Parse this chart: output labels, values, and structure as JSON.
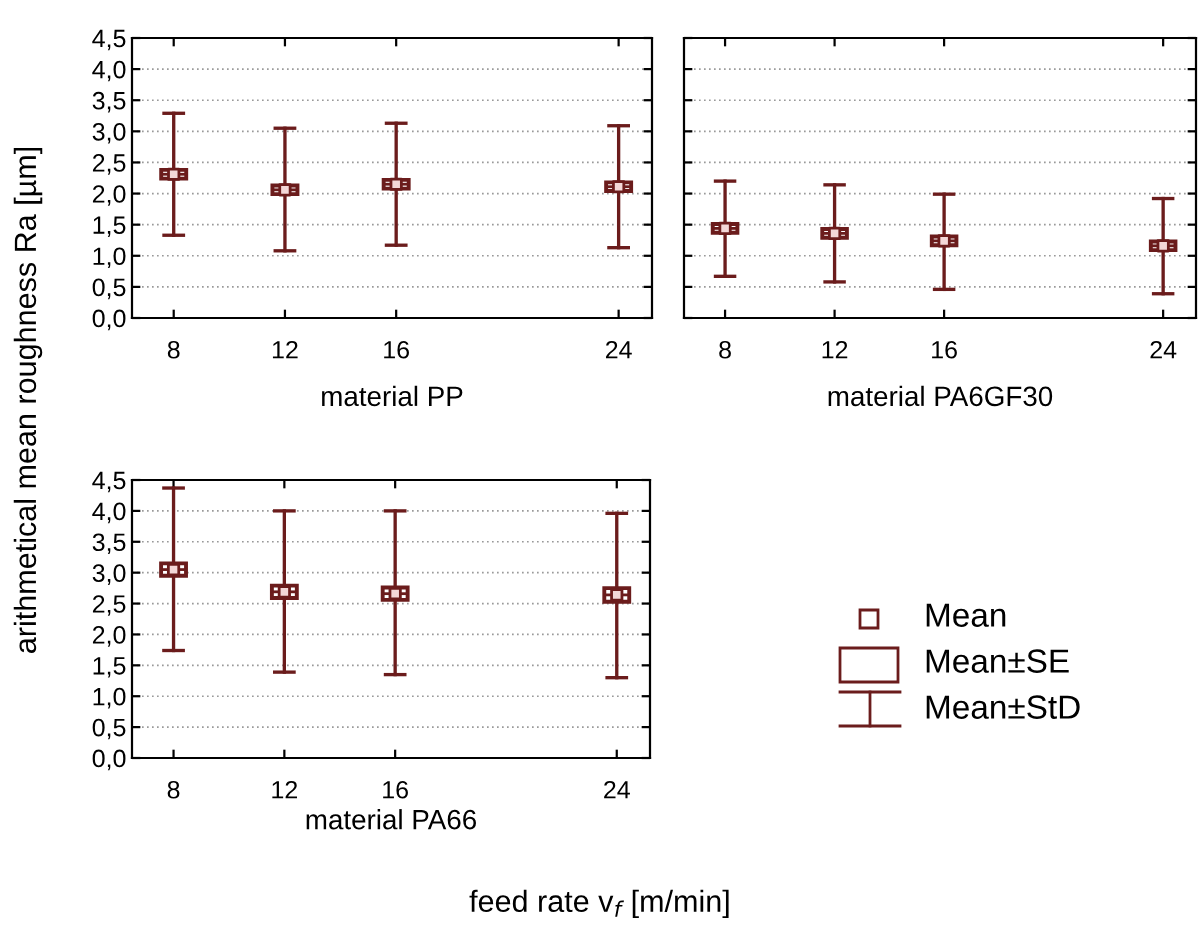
{
  "chart_data": [
    {
      "type": "box",
      "xlabel": "material PP",
      "ylabel": "arithmetical mean roughness Ra [µm]",
      "x": [
        8,
        12,
        16,
        24
      ],
      "xlim": [
        6.5,
        25.2
      ],
      "xticks": [
        8,
        12,
        16,
        24
      ],
      "ylim": [
        0,
        4.5
      ],
      "yticks": [
        {
          "value": 0,
          "label": "0,0"
        },
        {
          "value": 0.5,
          "label": "0,5"
        },
        {
          "value": 1,
          "label": "1,0"
        },
        {
          "value": 1.5,
          "label": "1,5"
        },
        {
          "value": 2,
          "label": "2,0"
        },
        {
          "value": 2.5,
          "label": "2,5"
        },
        {
          "value": 3,
          "label": "3,0"
        },
        {
          "value": 3.5,
          "label": "3,5"
        },
        {
          "value": 4,
          "label": "4,0"
        },
        {
          "value": 4.5,
          "label": "4,5"
        }
      ],
      "grid": "y",
      "color": "#6b1c1c",
      "boxes": [
        {
          "low": 1.33,
          "q1": 2.24,
          "median": 2.31,
          "mean": 2.31,
          "q3": 2.38,
          "high": 3.29
        },
        {
          "low": 1.08,
          "q1": 1.99,
          "median": 2.06,
          "mean": 2.06,
          "q3": 2.13,
          "high": 3.05
        },
        {
          "low": 1.17,
          "q1": 2.08,
          "median": 2.15,
          "mean": 2.15,
          "q3": 2.22,
          "high": 3.13
        },
        {
          "low": 1.13,
          "q1": 2.04,
          "median": 2.11,
          "mean": 2.11,
          "q3": 2.18,
          "high": 3.09
        }
      ]
    },
    {
      "type": "box",
      "xlabel": "material PA6GF30",
      "x": [
        8,
        12,
        16,
        24
      ],
      "xlim": [
        6.5,
        25.2
      ],
      "xticks": [
        8,
        12,
        16,
        24
      ],
      "ylim": [
        0,
        4.5
      ],
      "yticks": [
        {
          "value": 0,
          "label": null
        },
        {
          "value": 0.5,
          "label": null
        },
        {
          "value": 1,
          "label": null
        },
        {
          "value": 1.5,
          "label": null
        },
        {
          "value": 2,
          "label": null
        },
        {
          "value": 2.5,
          "label": null
        },
        {
          "value": 3,
          "label": null
        },
        {
          "value": 3.5,
          "label": null
        },
        {
          "value": 4,
          "label": null
        },
        {
          "value": 4.5,
          "label": null
        }
      ],
      "tick_labels": "x",
      "grid": "y",
      "color": "#6b1c1c",
      "boxes": [
        {
          "low": 0.67,
          "q1": 1.37,
          "median": 1.44,
          "mean": 1.44,
          "q3": 1.51,
          "high": 2.2
        },
        {
          "low": 0.58,
          "q1": 1.29,
          "median": 1.36,
          "mean": 1.36,
          "q3": 1.43,
          "high": 2.14
        },
        {
          "low": 0.46,
          "q1": 1.17,
          "median": 1.24,
          "mean": 1.24,
          "q3": 1.31,
          "high": 1.99
        },
        {
          "low": 0.39,
          "q1": 1.09,
          "median": 1.16,
          "mean": 1.16,
          "q3": 1.23,
          "high": 1.92
        }
      ]
    },
    {
      "type": "box",
      "xlabel": "material PA66",
      "x": [
        8,
        12,
        16,
        24
      ],
      "xlim": [
        6.5,
        25.2
      ],
      "xticks": [
        8,
        12,
        16,
        24
      ],
      "ylim": [
        0,
        4.5
      ],
      "yticks": [
        {
          "value": 0,
          "label": "0,0"
        },
        {
          "value": 0.5,
          "label": "0,5"
        },
        {
          "value": 1,
          "label": "1,0"
        },
        {
          "value": 1.5,
          "label": "1,5"
        },
        {
          "value": 2,
          "label": "2,0"
        },
        {
          "value": 2.5,
          "label": "2,5"
        },
        {
          "value": 3,
          "label": "3,0"
        },
        {
          "value": 3.5,
          "label": "3,5"
        },
        {
          "value": 4,
          "label": "4,0"
        },
        {
          "value": 4.5,
          "label": "4,5"
        }
      ],
      "grid": "y",
      "color": "#6b1c1c",
      "boxes": [
        {
          "low": 1.74,
          "q1": 2.95,
          "median": 3.05,
          "mean": 3.05,
          "q3": 3.15,
          "high": 4.37
        },
        {
          "low": 1.39,
          "q1": 2.59,
          "median": 2.69,
          "mean": 2.69,
          "q3": 2.79,
          "high": 4.0
        },
        {
          "low": 1.35,
          "q1": 2.56,
          "median": 2.66,
          "mean": 2.66,
          "q3": 2.76,
          "high": 4.0
        },
        {
          "low": 1.3,
          "q1": 2.53,
          "median": 2.64,
          "mean": 2.64,
          "q3": 2.75,
          "high": 3.96
        }
      ],
      "annotations": [
        "feed rate v$_{f}$ [m/min]",
        "Mean",
        "Mean±SE",
        "Mean±StD"
      ]
    }
  ]
}
